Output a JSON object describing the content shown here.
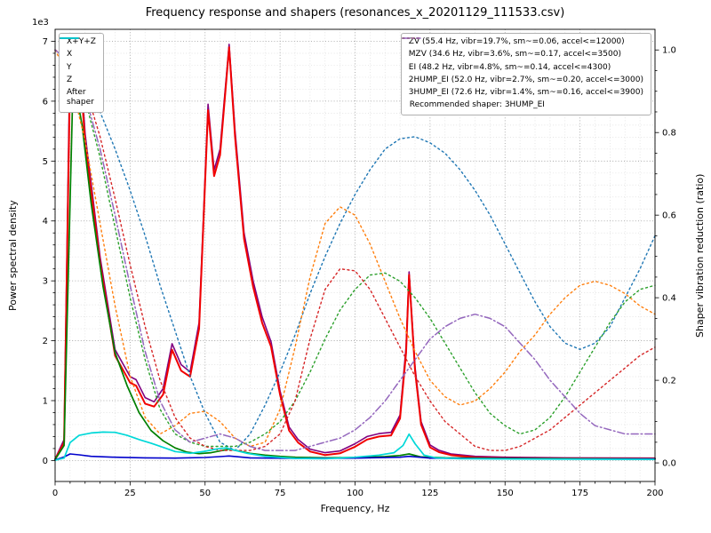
{
  "chart_data": {
    "type": "line",
    "title": "Frequency response and shapers (resonances_x_20201129_111533.csv)",
    "xlabel": "Frequency, Hz",
    "ylabel_left": "Power spectral density",
    "ylabel_right": "Shaper vibration reduction (ratio)",
    "offset_text": "1e3",
    "legend_note": "Recommended shaper: 3HUMP_EI",
    "xlim": [
      0,
      200
    ],
    "ylim_left": [
      -350,
      7200
    ],
    "ylim_right": [
      -0.045,
      1.05
    ],
    "xticks": [
      0,
      25,
      50,
      75,
      100,
      125,
      150,
      175,
      200
    ],
    "yticks_left": [
      0,
      1000,
      2000,
      3000,
      4000,
      5000,
      6000,
      7000
    ],
    "yticks_right": [
      0.0,
      0.2,
      0.4,
      0.6,
      0.8,
      1.0
    ],
    "grid": {
      "x_minor_step": 5,
      "y_minor_step_left": 200,
      "major_color": "#9a9a9a",
      "minor_color": "#dcdcdc"
    },
    "shaper_x": [
      0,
      5,
      10,
      15,
      20,
      25,
      30,
      35,
      40,
      45,
      50,
      55,
      60,
      65,
      70,
      75,
      80,
      85,
      90,
      95,
      100,
      105,
      110,
      115,
      120,
      125,
      130,
      135,
      140,
      145,
      150,
      155,
      160,
      165,
      170,
      175,
      180,
      185,
      190,
      195,
      200
    ],
    "series": [
      {
        "name": "sum-xyz",
        "label": "X+Y+Z",
        "axis": "left",
        "color": "#800080",
        "dash": "solid",
        "width": 1.6,
        "x": [
          0,
          3,
          5,
          8,
          10,
          15,
          20,
          25,
          27,
          30,
          33,
          36,
          39,
          42,
          45,
          48,
          51,
          53,
          55,
          58,
          60,
          63,
          66,
          69,
          72,
          75,
          78,
          81,
          85,
          90,
          95,
          100,
          104,
          108,
          112,
          115,
          117,
          118,
          120,
          122,
          125,
          128,
          132,
          140,
          150,
          170,
          200
        ],
        "y": [
          25,
          350,
          6950,
          6900,
          5450,
          3400,
          1850,
          1400,
          1350,
          1050,
          980,
          1200,
          1950,
          1600,
          1480,
          2300,
          5950,
          4850,
          5200,
          6950,
          5500,
          3800,
          3000,
          2400,
          1980,
          1160,
          560,
          350,
          190,
          130,
          160,
          280,
          400,
          450,
          470,
          760,
          1900,
          3150,
          1560,
          650,
          260,
          170,
          110,
          70,
          55,
          45,
          40
        ]
      },
      {
        "name": "psd-x",
        "label": "X",
        "axis": "left",
        "color": "#f10000",
        "dash": "solid",
        "width": 2,
        "x": [
          0,
          3,
          5,
          8,
          10,
          15,
          20,
          25,
          27,
          30,
          33,
          36,
          39,
          42,
          45,
          48,
          51,
          53,
          55,
          58,
          60,
          63,
          66,
          69,
          72,
          75,
          78,
          81,
          85,
          90,
          95,
          100,
          104,
          108,
          112,
          115,
          117,
          118,
          120,
          122,
          125,
          128,
          132,
          140,
          150,
          170,
          200
        ],
        "y": [
          20,
          300,
          6500,
          6750,
          5300,
          3300,
          1750,
          1300,
          1250,
          950,
          900,
          1100,
          1850,
          1500,
          1400,
          2200,
          5850,
          4750,
          5100,
          6900,
          5400,
          3700,
          2900,
          2300,
          1900,
          1100,
          500,
          300,
          150,
          90,
          120,
          230,
          350,
          400,
          420,
          700,
          1800,
          3100,
          1500,
          600,
          220,
          140,
          90,
          50,
          40,
          35,
          30
        ]
      },
      {
        "name": "psd-y",
        "label": "Y",
        "axis": "left",
        "color": "#008000",
        "dash": "solid",
        "width": 1.7,
        "x": [
          0,
          3,
          6,
          9,
          12,
          16,
          20,
          24,
          28,
          32,
          36,
          40,
          44,
          48,
          52,
          56,
          58,
          61,
          65,
          70,
          75,
          80,
          90,
          100,
          110,
          115,
          118,
          122,
          130,
          150,
          200
        ],
        "y": [
          15,
          250,
          6400,
          5600,
          4300,
          2900,
          1800,
          1250,
          800,
          500,
          330,
          210,
          140,
          115,
          130,
          170,
          190,
          160,
          120,
          90,
          70,
          55,
          45,
          50,
          65,
          85,
          110,
          60,
          45,
          35,
          25
        ]
      },
      {
        "name": "psd-z",
        "label": "Z",
        "axis": "left",
        "color": "#0000cc",
        "dash": "solid",
        "width": 1.6,
        "x": [
          0,
          3,
          5,
          8,
          12,
          20,
          30,
          40,
          50,
          55,
          58,
          65,
          80,
          100,
          115,
          118,
          125,
          150,
          200
        ],
        "y": [
          10,
          60,
          110,
          95,
          70,
          55,
          45,
          40,
          50,
          65,
          75,
          45,
          35,
          40,
          55,
          70,
          40,
          30,
          25
        ]
      },
      {
        "name": "shaper-zv",
        "label": "ZV (55.4 Hz, vibr=19.7%, sm~=0.06, accel<=12000)",
        "axis": "right",
        "color": "#1f77b4",
        "dash": "dotted",
        "width": 1.4,
        "y": [
          1.0,
          0.97,
          0.92,
          0.85,
          0.76,
          0.66,
          0.55,
          0.43,
          0.32,
          0.21,
          0.12,
          0.05,
          0.03,
          0.07,
          0.14,
          0.22,
          0.31,
          0.41,
          0.5,
          0.58,
          0.65,
          0.71,
          0.76,
          0.785,
          0.79,
          0.775,
          0.75,
          0.71,
          0.66,
          0.6,
          0.53,
          0.46,
          0.39,
          0.33,
          0.29,
          0.275,
          0.29,
          0.33,
          0.4,
          0.47,
          0.55
        ]
      },
      {
        "name": "shaper-mzv",
        "label": "MZV (34.6 Hz, vibr=3.6%, sm~=0.17, accel<=3500)",
        "axis": "right",
        "color": "#ff7f0e",
        "dash": "dotted",
        "width": 1.4,
        "y": [
          1.0,
          0.93,
          0.78,
          0.58,
          0.38,
          0.21,
          0.11,
          0.07,
          0.09,
          0.12,
          0.125,
          0.1,
          0.06,
          0.04,
          0.05,
          0.13,
          0.28,
          0.45,
          0.58,
          0.62,
          0.6,
          0.53,
          0.44,
          0.35,
          0.27,
          0.2,
          0.16,
          0.14,
          0.15,
          0.18,
          0.22,
          0.27,
          0.31,
          0.36,
          0.4,
          0.43,
          0.44,
          0.43,
          0.41,
          0.38,
          0.36
        ]
      },
      {
        "name": "shaper-ei",
        "label": "EI (48.2 Hz, vibr=4.8%, sm~=0.14, accel<=4300)",
        "axis": "right",
        "color": "#2ca02c",
        "dash": "dotted",
        "width": 1.4,
        "y": [
          1.0,
          0.97,
          0.88,
          0.74,
          0.57,
          0.4,
          0.25,
          0.13,
          0.07,
          0.05,
          0.04,
          0.04,
          0.04,
          0.05,
          0.07,
          0.1,
          0.15,
          0.22,
          0.3,
          0.37,
          0.42,
          0.455,
          0.46,
          0.44,
          0.4,
          0.35,
          0.29,
          0.23,
          0.17,
          0.12,
          0.09,
          0.07,
          0.08,
          0.11,
          0.16,
          0.22,
          0.28,
          0.34,
          0.39,
          0.42,
          0.43
        ]
      },
      {
        "name": "shaper-2hump-ei",
        "label": "2HUMP_EI (52.0 Hz, vibr=2.7%, sm~=0.20, accel<=3000)",
        "axis": "right",
        "color": "#d62728",
        "dash": "dotted",
        "width": 1.4,
        "y": [
          1.0,
          0.98,
          0.91,
          0.79,
          0.64,
          0.48,
          0.33,
          0.2,
          0.11,
          0.06,
          0.04,
          0.03,
          0.03,
          0.03,
          0.04,
          0.07,
          0.15,
          0.3,
          0.42,
          0.47,
          0.465,
          0.42,
          0.35,
          0.28,
          0.21,
          0.15,
          0.1,
          0.07,
          0.04,
          0.03,
          0.03,
          0.04,
          0.06,
          0.08,
          0.11,
          0.14,
          0.17,
          0.2,
          0.23,
          0.26,
          0.28
        ]
      },
      {
        "name": "shaper-3hump-ei",
        "label": "3HUMP_EI (72.6 Hz, vibr=1.4%, sm~=0.16, accel<=3900)",
        "axis": "right",
        "color": "#9467bd",
        "dash": "dashdot",
        "width": 1.5,
        "y": [
          1.0,
          0.97,
          0.89,
          0.76,
          0.6,
          0.43,
          0.27,
          0.15,
          0.08,
          0.05,
          0.06,
          0.07,
          0.06,
          0.04,
          0.03,
          0.03,
          0.03,
          0.04,
          0.05,
          0.06,
          0.08,
          0.11,
          0.15,
          0.2,
          0.25,
          0.3,
          0.33,
          0.35,
          0.36,
          0.35,
          0.33,
          0.29,
          0.25,
          0.2,
          0.16,
          0.12,
          0.09,
          0.08,
          0.07,
          0.07,
          0.07
        ]
      },
      {
        "name": "after-shaper",
        "label": "After\nshaper",
        "axis": "left",
        "color": "#00d8d8",
        "dash": "solid",
        "width": 1.7,
        "x": [
          0,
          3,
          5,
          8,
          12,
          16,
          20,
          24,
          28,
          32,
          36,
          40,
          45,
          50,
          54,
          57,
          60,
          64,
          70,
          80,
          90,
          100,
          108,
          113,
          116,
          118,
          120,
          123,
          127,
          135,
          150,
          200
        ],
        "y": [
          5,
          40,
          300,
          420,
          460,
          475,
          470,
          420,
          350,
          290,
          220,
          150,
          120,
          155,
          195,
          210,
          170,
          120,
          70,
          35,
          30,
          55,
          90,
          130,
          250,
          440,
          280,
          90,
          45,
          30,
          25,
          20
        ]
      }
    ]
  }
}
